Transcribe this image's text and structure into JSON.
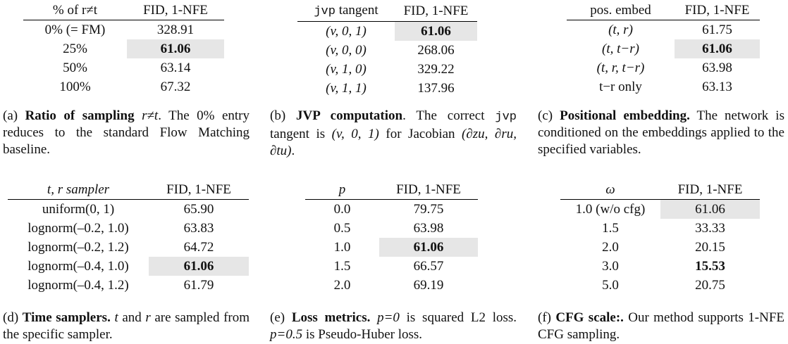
{
  "tables": {
    "a": {
      "headers": [
        "% of r≠t",
        "FID, 1-NFE"
      ],
      "rows": [
        [
          "0% (= FM)",
          "328.91"
        ],
        [
          "25%",
          "61.06"
        ],
        [
          "50%",
          "63.14"
        ],
        [
          "100%",
          "67.32"
        ]
      ],
      "caption": {
        "label": "(a) ",
        "bold": "Ratio of sampling ",
        "text": ". The 0% entry reduces to the standard Flow Matching baseline.",
        "math": "r≠t"
      }
    },
    "b": {
      "headers": [
        "jvp",
        " tangent",
        "FID, 1-NFE"
      ],
      "rows": [
        [
          "(v, 0, 1)",
          "61.06"
        ],
        [
          "(v, 0, 0)",
          "268.06"
        ],
        [
          "(v, 1, 0)",
          "329.22"
        ],
        [
          "(v, 1, 1)",
          "137.96"
        ]
      ],
      "caption": {
        "label": "(b) ",
        "bold": "JVP computation",
        "text1": ".  The correct ",
        "mono": "jvp",
        "text2": " tangent is ",
        "math1": "(v, 0, 1)",
        "text3": " for Jacobian ",
        "math2": "(∂zu, ∂ru, ∂tu)",
        "text4": "."
      }
    },
    "c": {
      "headers": [
        "pos. embed",
        "FID, 1-NFE"
      ],
      "rows": [
        [
          "(t, r)",
          "61.75"
        ],
        [
          "(t, t−r)",
          "61.06"
        ],
        [
          "(t, r, t−r)",
          "63.98"
        ],
        [
          "t−r only",
          "63.13"
        ]
      ],
      "caption": {
        "label": "(c) ",
        "bold": "Positional embedding.",
        "text": " The network is conditioned on the embeddings applied to the specified variables."
      }
    },
    "d": {
      "headers": [
        "t, r sampler",
        "FID, 1-NFE"
      ],
      "rows": [
        [
          "uniform(0, 1)",
          "65.90"
        ],
        [
          "lognorm(–0.2, 1.0)",
          "63.83"
        ],
        [
          "lognorm(–0.2, 1.2)",
          "64.72"
        ],
        [
          "lognorm(–0.4, 1.0)",
          "61.06"
        ],
        [
          "lognorm(–0.4, 1.2)",
          "61.79"
        ]
      ],
      "caption": {
        "label": "(d) ",
        "bold": "Time samplers.",
        "text1": " ",
        "math1": "t",
        "text2": " and ",
        "math2": "r",
        "text3": " are sampled from the specific sampler."
      }
    },
    "e": {
      "headers": [
        "p",
        "FID, 1-NFE"
      ],
      "rows": [
        [
          "0.0",
          "79.75"
        ],
        [
          "0.5",
          "63.98"
        ],
        [
          "1.0",
          "61.06"
        ],
        [
          "1.5",
          "66.57"
        ],
        [
          "2.0",
          "69.19"
        ]
      ],
      "caption": {
        "label": "(e) ",
        "bold": "Loss metrics.",
        "text1": " ",
        "math1": "p=0",
        "text2": " is squared L2 loss. ",
        "math2": "p=0.5",
        "text3": " is Pseudo-Huber loss."
      }
    },
    "f": {
      "headers": [
        "ω",
        "FID, 1-NFE"
      ],
      "rows": [
        [
          "1.0 (w/o cfg)",
          "61.06"
        ],
        [
          "1.5",
          "33.33"
        ],
        [
          "2.0",
          "20.15"
        ],
        [
          "3.0",
          "15.53"
        ],
        [
          "5.0",
          "20.75"
        ]
      ],
      "caption": {
        "label": "(f) ",
        "bold": "CFG scale:.",
        "text": " Our method supports 1-NFE CFG sampling."
      }
    }
  }
}
